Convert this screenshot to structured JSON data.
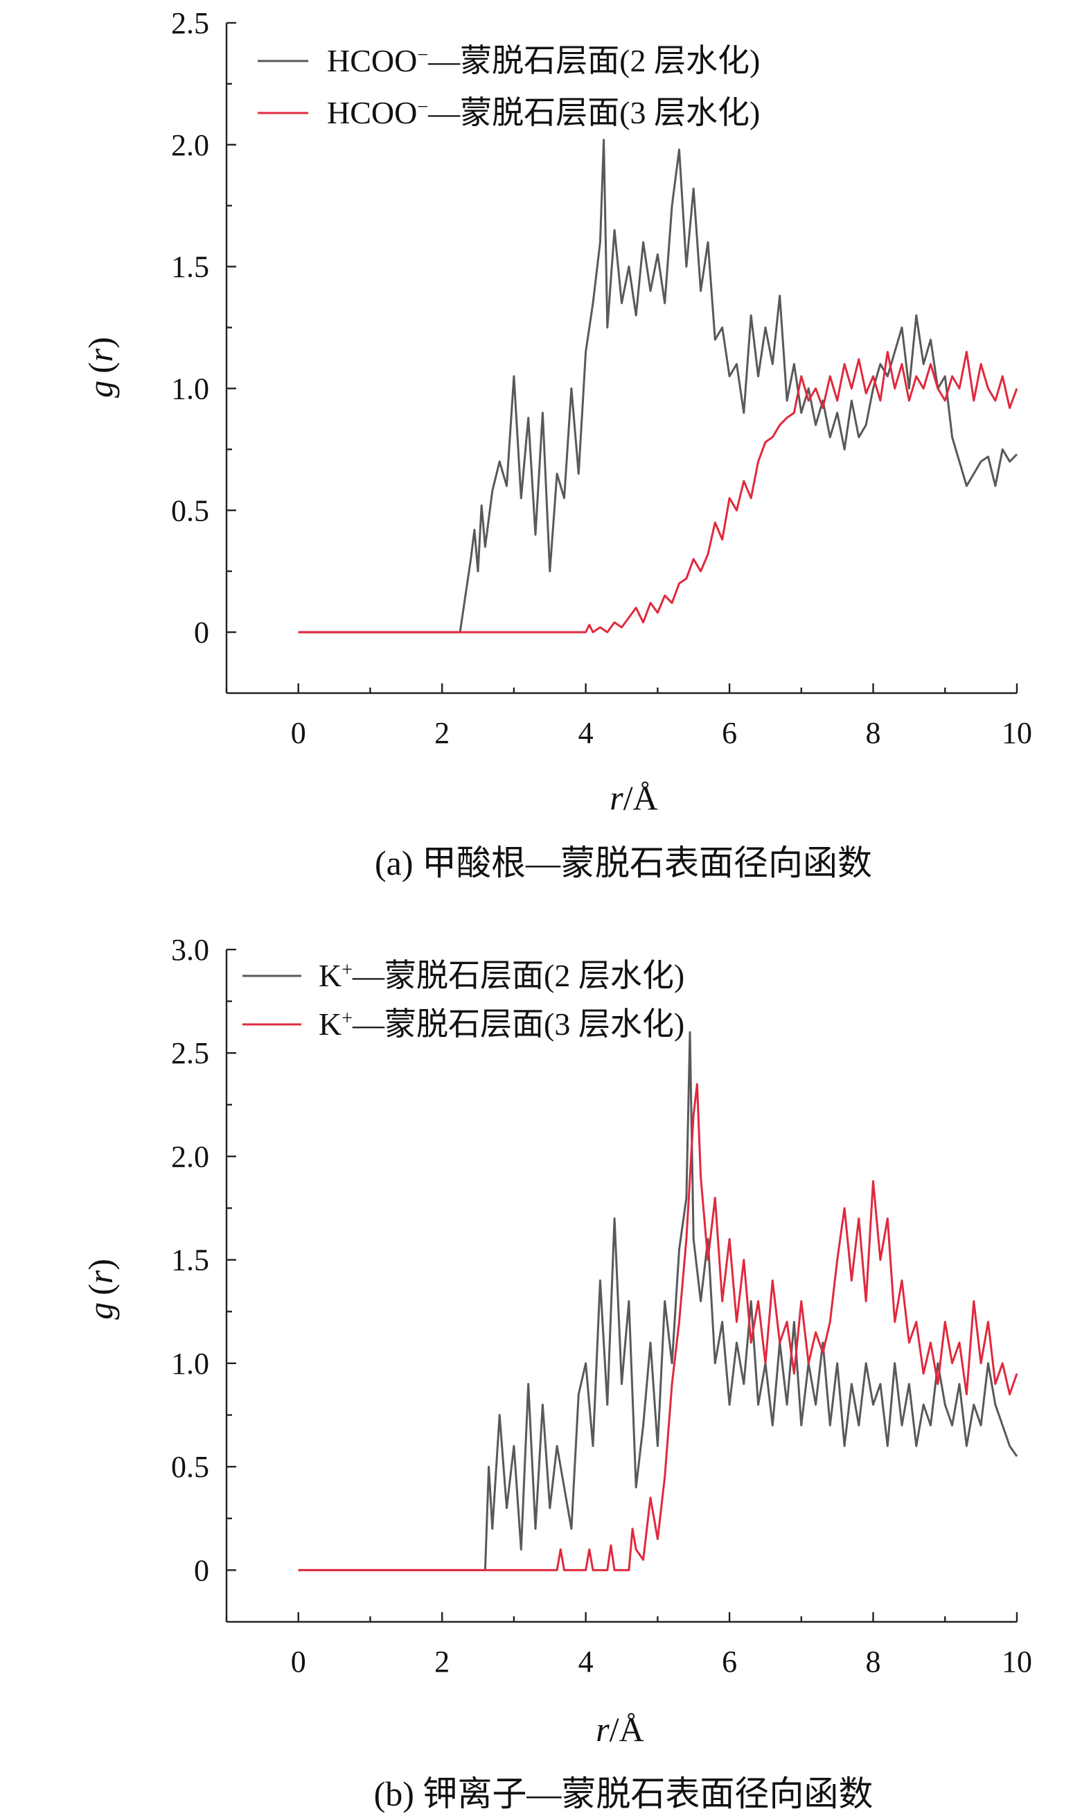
{
  "colors": {
    "series_1": "#595959",
    "series_2": "#e0293d"
  },
  "chart_data": [
    {
      "id": "a",
      "type": "line",
      "caption": "(a) 甲酸根—蒙脱石表面径向函数",
      "xlabel_var": "r",
      "xlabel_unit": "/Å",
      "ylabel_fn": "g",
      "ylabel_var": "r",
      "xlim": [
        -1,
        10
      ],
      "ylim": [
        -0.25,
        2.5
      ],
      "xticks": [
        0,
        2,
        4,
        6,
        8,
        10
      ],
      "xtick_labels": [
        "0",
        "2",
        "4",
        "6",
        "8",
        "10"
      ],
      "yticks": [
        0,
        0.5,
        1.0,
        1.5,
        2.0,
        2.5
      ],
      "ytick_labels": [
        "0",
        "0.5",
        "1.0",
        "1.5",
        "2.0",
        "2.5"
      ],
      "legend_position": "top-left",
      "grid": false,
      "series": [
        {
          "name": "HCOO⁻—蒙脱石层面(2 层水化)",
          "name_base": "HCOO",
          "name_sup": "−",
          "name_rest": "—蒙脱石层面(2 层水化)",
          "color": "#595959",
          "x": [
            0.0,
            2.25,
            2.3,
            2.35,
            2.4,
            2.45,
            2.5,
            2.55,
            2.6,
            2.7,
            2.8,
            2.9,
            3.0,
            3.1,
            3.2,
            3.3,
            3.4,
            3.5,
            3.6,
            3.7,
            3.8,
            3.9,
            4.0,
            4.1,
            4.2,
            4.25,
            4.3,
            4.4,
            4.5,
            4.6,
            4.7,
            4.8,
            4.9,
            5.0,
            5.1,
            5.2,
            5.3,
            5.4,
            5.5,
            5.6,
            5.7,
            5.8,
            5.9,
            6.0,
            6.1,
            6.2,
            6.3,
            6.4,
            6.5,
            6.6,
            6.7,
            6.8,
            6.9,
            7.0,
            7.1,
            7.2,
            7.3,
            7.4,
            7.5,
            7.6,
            7.7,
            7.8,
            7.9,
            8.0,
            8.1,
            8.2,
            8.3,
            8.4,
            8.5,
            8.6,
            8.7,
            8.8,
            8.9,
            9.0,
            9.1,
            9.2,
            9.3,
            9.4,
            9.5,
            9.6,
            9.7,
            9.8,
            9.9,
            10.0
          ],
          "y": [
            0.0,
            0.0,
            0.1,
            0.2,
            0.3,
            0.42,
            0.25,
            0.52,
            0.35,
            0.58,
            0.7,
            0.6,
            1.05,
            0.55,
            0.88,
            0.4,
            0.9,
            0.25,
            0.65,
            0.55,
            1.0,
            0.65,
            1.15,
            1.35,
            1.6,
            2.02,
            1.25,
            1.65,
            1.35,
            1.5,
            1.3,
            1.6,
            1.4,
            1.55,
            1.35,
            1.75,
            1.98,
            1.5,
            1.82,
            1.4,
            1.6,
            1.2,
            1.25,
            1.05,
            1.1,
            0.9,
            1.3,
            1.05,
            1.25,
            1.1,
            1.38,
            0.95,
            1.1,
            0.9,
            1.0,
            0.85,
            0.95,
            0.8,
            0.9,
            0.75,
            0.95,
            0.8,
            0.85,
            1.0,
            1.1,
            1.05,
            1.15,
            1.25,
            1.0,
            1.3,
            1.1,
            1.2,
            1.0,
            1.05,
            0.8,
            0.7,
            0.6,
            0.65,
            0.7,
            0.72,
            0.6,
            0.75,
            0.7,
            0.73
          ]
        },
        {
          "name": "HCOO⁻—蒙脱石层面(3 层水化)",
          "name_base": "HCOO",
          "name_sup": "−",
          "name_rest": "—蒙脱石层面(3 层水化)",
          "color": "#e0293d",
          "x": [
            0.0,
            4.0,
            4.05,
            4.1,
            4.2,
            4.3,
            4.4,
            4.5,
            4.6,
            4.7,
            4.8,
            4.9,
            5.0,
            5.1,
            5.2,
            5.3,
            5.4,
            5.5,
            5.6,
            5.7,
            5.8,
            5.9,
            6.0,
            6.1,
            6.2,
            6.3,
            6.4,
            6.5,
            6.6,
            6.7,
            6.8,
            6.9,
            7.0,
            7.1,
            7.2,
            7.3,
            7.4,
            7.5,
            7.6,
            7.7,
            7.8,
            7.9,
            8.0,
            8.1,
            8.2,
            8.3,
            8.4,
            8.5,
            8.6,
            8.7,
            8.8,
            8.9,
            9.0,
            9.1,
            9.2,
            9.3,
            9.4,
            9.5,
            9.6,
            9.7,
            9.8,
            9.9,
            10.0
          ],
          "y": [
            0.0,
            0.0,
            0.03,
            0.0,
            0.02,
            0.0,
            0.04,
            0.02,
            0.06,
            0.1,
            0.04,
            0.12,
            0.08,
            0.15,
            0.12,
            0.2,
            0.22,
            0.3,
            0.25,
            0.32,
            0.45,
            0.38,
            0.55,
            0.5,
            0.62,
            0.55,
            0.7,
            0.78,
            0.8,
            0.85,
            0.88,
            0.9,
            1.05,
            0.95,
            1.0,
            0.92,
            1.05,
            0.95,
            1.1,
            1.0,
            1.12,
            0.98,
            1.05,
            0.95,
            1.15,
            1.0,
            1.1,
            0.95,
            1.05,
            1.0,
            1.1,
            1.0,
            0.95,
            1.05,
            1.0,
            1.15,
            0.95,
            1.1,
            1.0,
            0.95,
            1.05,
            0.92,
            1.0
          ]
        }
      ]
    },
    {
      "id": "b",
      "type": "line",
      "caption": "(b) 钾离子—蒙脱石表面径向函数",
      "xlabel_var": "r",
      "xlabel_unit": "/Å",
      "ylabel_fn": "g",
      "ylabel_var": "r",
      "xlim": [
        -1,
        10
      ],
      "ylim": [
        -0.25,
        3.0
      ],
      "xticks": [
        0,
        2,
        4,
        6,
        8,
        10
      ],
      "xtick_labels": [
        "0",
        "2",
        "4",
        "6",
        "8",
        "10"
      ],
      "yticks": [
        0,
        0.5,
        1.0,
        1.5,
        2.0,
        2.5,
        3.0
      ],
      "ytick_labels": [
        "0",
        "0.5",
        "1.0",
        "1.5",
        "2.0",
        "2.5",
        "3.0"
      ],
      "legend_position": "top-left",
      "grid": false,
      "series": [
        {
          "name": "K⁺—蒙脱石层面(2 层水化)",
          "name_base": "K",
          "name_sup": "+",
          "name_rest": "—蒙脱石层面(2 层水化)",
          "color": "#595959",
          "x": [
            0.0,
            2.6,
            2.65,
            2.7,
            2.8,
            2.9,
            3.0,
            3.1,
            3.2,
            3.3,
            3.4,
            3.5,
            3.6,
            3.7,
            3.8,
            3.9,
            4.0,
            4.1,
            4.2,
            4.3,
            4.4,
            4.5,
            4.6,
            4.7,
            4.8,
            4.9,
            5.0,
            5.1,
            5.2,
            5.3,
            5.4,
            5.45,
            5.5,
            5.6,
            5.7,
            5.8,
            5.9,
            6.0,
            6.1,
            6.2,
            6.3,
            6.4,
            6.5,
            6.6,
            6.7,
            6.8,
            6.9,
            7.0,
            7.1,
            7.2,
            7.3,
            7.4,
            7.5,
            7.6,
            7.7,
            7.8,
            7.9,
            8.0,
            8.1,
            8.2,
            8.3,
            8.4,
            8.5,
            8.6,
            8.7,
            8.8,
            8.9,
            9.0,
            9.1,
            9.2,
            9.3,
            9.4,
            9.5,
            9.6,
            9.7,
            9.8,
            9.9,
            10.0
          ],
          "y": [
            0.0,
            0.0,
            0.5,
            0.2,
            0.75,
            0.3,
            0.6,
            0.1,
            0.9,
            0.2,
            0.8,
            0.3,
            0.6,
            0.4,
            0.2,
            0.85,
            1.0,
            0.6,
            1.4,
            0.8,
            1.7,
            0.9,
            1.3,
            0.4,
            0.7,
            1.1,
            0.6,
            1.3,
            1.0,
            1.55,
            1.8,
            2.6,
            1.6,
            1.3,
            1.6,
            1.0,
            1.2,
            0.8,
            1.1,
            0.9,
            1.3,
            0.8,
            1.0,
            0.7,
            1.1,
            0.8,
            1.2,
            0.7,
            1.0,
            0.8,
            1.1,
            0.7,
            1.0,
            0.6,
            0.9,
            0.7,
            1.0,
            0.8,
            0.9,
            0.6,
            1.0,
            0.7,
            0.9,
            0.6,
            0.8,
            0.7,
            1.0,
            0.8,
            0.7,
            0.9,
            0.6,
            0.8,
            0.7,
            1.0,
            0.8,
            0.7,
            0.6,
            0.55
          ]
        },
        {
          "name": "K⁺—蒙脱石层面(3 层水化)",
          "name_base": "K",
          "name_sup": "+",
          "name_rest": "—蒙脱石层面(3 层水化)",
          "color": "#e0293d",
          "x": [
            0.0,
            3.6,
            3.65,
            3.7,
            4.0,
            4.05,
            4.1,
            4.3,
            4.35,
            4.4,
            4.6,
            4.65,
            4.7,
            4.8,
            4.9,
            5.0,
            5.1,
            5.2,
            5.3,
            5.4,
            5.5,
            5.55,
            5.6,
            5.7,
            5.8,
            5.9,
            6.0,
            6.1,
            6.2,
            6.3,
            6.4,
            6.5,
            6.6,
            6.7,
            6.8,
            6.9,
            7.0,
            7.1,
            7.2,
            7.3,
            7.4,
            7.5,
            7.6,
            7.7,
            7.8,
            7.9,
            8.0,
            8.1,
            8.2,
            8.3,
            8.4,
            8.5,
            8.6,
            8.7,
            8.8,
            8.9,
            9.0,
            9.1,
            9.2,
            9.3,
            9.4,
            9.5,
            9.6,
            9.7,
            9.8,
            9.9,
            10.0
          ],
          "y": [
            0.0,
            0.0,
            0.1,
            0.0,
            0.0,
            0.1,
            0.0,
            0.0,
            0.12,
            0.0,
            0.0,
            0.2,
            0.1,
            0.05,
            0.35,
            0.15,
            0.45,
            0.9,
            1.2,
            1.6,
            2.2,
            2.35,
            1.9,
            1.5,
            1.8,
            1.3,
            1.6,
            1.2,
            1.5,
            1.1,
            1.3,
            1.0,
            1.4,
            1.1,
            1.2,
            0.95,
            1.3,
            1.0,
            1.15,
            1.05,
            1.2,
            1.5,
            1.75,
            1.4,
            1.7,
            1.3,
            1.88,
            1.5,
            1.7,
            1.2,
            1.4,
            1.1,
            1.2,
            0.95,
            1.1,
            0.9,
            1.2,
            1.0,
            1.1,
            0.85,
            1.3,
            1.0,
            1.2,
            0.9,
            1.0,
            0.85,
            0.95
          ]
        }
      ]
    }
  ]
}
